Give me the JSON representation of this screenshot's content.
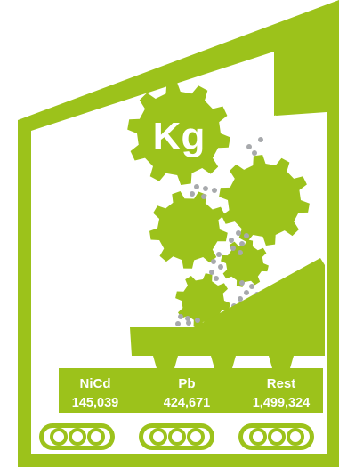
{
  "colors": {
    "accent": "#9cc21b",
    "background": "#ffffff",
    "pellet": "#a7a9ac",
    "text": "#ffffff"
  },
  "unit_gear": {
    "label": "Kg",
    "icon": "gear-icon"
  },
  "bins": [
    {
      "name": "NiCd",
      "value": "145,039"
    },
    {
      "name": "Pb",
      "value": "424,671"
    },
    {
      "name": "Rest",
      "value": "1,499,324"
    }
  ],
  "conveyor_icon": "conveyor-belt-icon"
}
